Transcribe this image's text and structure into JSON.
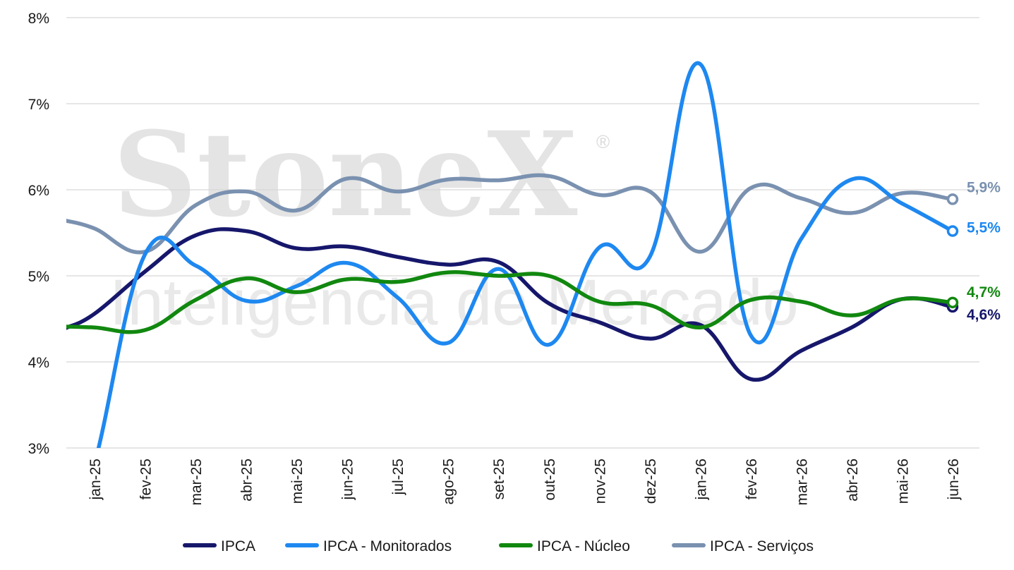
{
  "watermark": {
    "brand": "StoneX",
    "registered": "®",
    "tagline": "Inteligência de Mercado"
  },
  "chart_data": {
    "type": "line",
    "categories": [
      "jan-25",
      "fev-25",
      "mar-25",
      "abr-25",
      "mai-25",
      "jun-25",
      "jul-25",
      "ago-25",
      "set-25",
      "out-25",
      "nov-25",
      "dez-25",
      "jan-26",
      "fev-26",
      "mar-26",
      "abr-26",
      "mai-26",
      "jun-26"
    ],
    "ylim": [
      3,
      8
    ],
    "yticks": [
      3,
      4,
      5,
      6,
      7,
      8
    ],
    "ytick_labels": [
      "3%",
      "4%",
      "5%",
      "6%",
      "7%",
      "8%"
    ],
    "grid": true,
    "legend_position": "bottom",
    "series": [
      {
        "name": "IPCA",
        "color": "#16176b",
        "values": [
          4.56,
          5.05,
          5.47,
          5.52,
          5.32,
          5.34,
          5.22,
          5.13,
          5.16,
          4.68,
          4.46,
          4.27,
          4.43,
          3.8,
          4.13,
          4.4,
          4.73,
          4.64
        ],
        "end_label": "4,6%"
      },
      {
        "name": "IPCA - Monitorados",
        "color": "#1e88f0",
        "values": [
          2.82,
          5.25,
          5.12,
          4.71,
          4.88,
          5.15,
          4.75,
          4.22,
          5.08,
          4.2,
          5.33,
          5.22,
          7.46,
          4.31,
          5.43,
          6.12,
          5.84,
          5.52
        ],
        "end_label": "5,5%"
      },
      {
        "name": "IPCA - Núcleo",
        "color": "#11880f",
        "values": [
          4.4,
          4.37,
          4.72,
          4.97,
          4.81,
          4.96,
          4.93,
          5.04,
          5.0,
          5.0,
          4.7,
          4.66,
          4.4,
          4.72,
          4.7,
          4.54,
          4.73,
          4.69
        ],
        "end_label": "4,7%"
      },
      {
        "name": "IPCA - Serviços",
        "color": "#7a91b0",
        "values": [
          5.55,
          5.28,
          5.82,
          5.98,
          5.76,
          6.13,
          5.98,
          6.12,
          6.11,
          6.16,
          5.94,
          5.98,
          5.28,
          6.02,
          5.9,
          5.73,
          5.96,
          5.89
        ],
        "end_label": "5,9%"
      }
    ]
  }
}
